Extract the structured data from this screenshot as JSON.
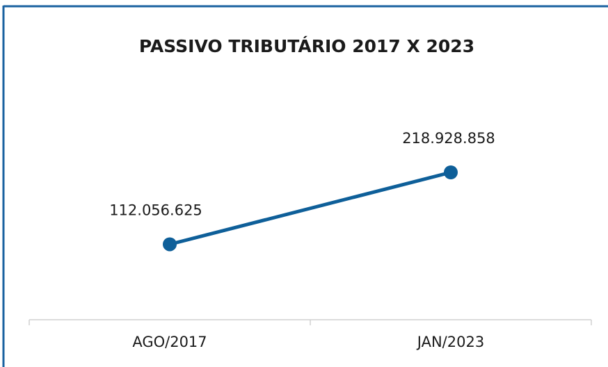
{
  "chart_data": {
    "type": "line",
    "title": "PASSIVO TRIBUTÁRIO 2017 X 2023",
    "categories": [
      "AGO/2017",
      "JAN/2023"
    ],
    "values": [
      112056625,
      218928858
    ],
    "value_labels": [
      "112.056.625",
      "218.928.858"
    ],
    "color": "#0e5f99"
  }
}
